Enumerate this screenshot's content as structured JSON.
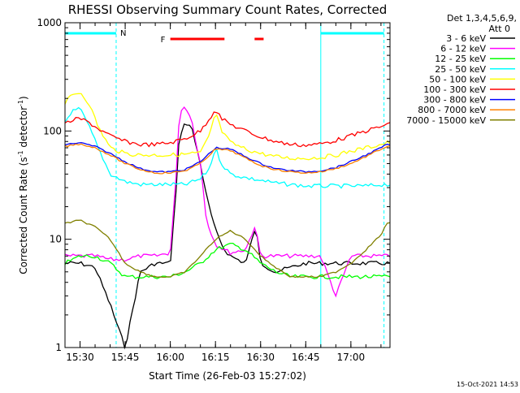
{
  "chart_data": {
    "type": "line",
    "title": "RHESSI Observing Summary Count Rates, Corrected",
    "xlabel": "Start Time (26-Feb-03 15:27:02)",
    "ylabel": "Corrected Count Rate (s",
    "ylabel_sup": "-1",
    "ylabel_mid": " detector",
    "ylabel_end": ")",
    "y_scale": "log",
    "ylim": [
      1,
      1000
    ],
    "xlim": [
      "15:25",
      "17:13"
    ],
    "x_ticks": [
      "15:30",
      "15:45",
      "16:00",
      "16:15",
      "16:30",
      "16:45",
      "17:00"
    ],
    "y_ticks": [
      "1",
      "10",
      "100",
      "1000"
    ],
    "grid": false,
    "timestamp": "15-Oct-2021 14:53",
    "legend": {
      "placement": "right",
      "header": [
        "Det 1,3,4,5,6,9,",
        "Att 0"
      ]
    },
    "colors": {
      "background": "#ffffff",
      "axes": "#000000",
      "markers": "#ff0000",
      "night": "#00ffff"
    },
    "annotations": {
      "night_label": "N",
      "flare_label": "F"
    },
    "night_periods": [
      [
        "15:25",
        "15:42"
      ],
      [
        "16:50",
        "17:11"
      ]
    ],
    "flare_periods": [
      [
        "16:00",
        "16:18"
      ],
      [
        "16:28",
        "16:31"
      ]
    ],
    "series": [
      {
        "name": "3 - 6 keV",
        "color": "#000000",
        "x": [
          "15:25",
          "15:30",
          "15:35",
          "15:40",
          "15:45",
          "15:50",
          "15:55",
          "16:00",
          "16:02",
          "16:03",
          "16:05",
          "16:07",
          "16:10",
          "16:12",
          "16:15",
          "16:18",
          "16:20",
          "16:25",
          "16:28",
          "16:29",
          "16:30",
          "16:35",
          "16:40",
          "16:45",
          "16:50",
          "16:55",
          "17:00",
          "17:05",
          "17:10",
          "17:12"
        ],
        "y": [
          6,
          6,
          5.5,
          2.5,
          1,
          5,
          6,
          6,
          30,
          90,
          120,
          110,
          50,
          25,
          12,
          8,
          7,
          6,
          12,
          10,
          6,
          5,
          5.5,
          6,
          6,
          6,
          6,
          6,
          6,
          6
        ]
      },
      {
        "name": "6 - 12 keV",
        "color": "#ff00ff",
        "x": [
          "15:25",
          "15:30",
          "15:35",
          "15:40",
          "15:45",
          "15:50",
          "15:55",
          "16:00",
          "16:02",
          "16:03",
          "16:05",
          "16:07",
          "16:10",
          "16:12",
          "16:15",
          "16:18",
          "16:20",
          "16:25",
          "16:28",
          "16:29",
          "16:30",
          "16:35",
          "16:40",
          "16:45",
          "16:50",
          "16:55",
          "17:00",
          "17:05",
          "17:10",
          "17:12"
        ],
        "y": [
          7,
          7,
          7,
          6.5,
          6.5,
          7,
          7,
          7.5,
          40,
          150,
          170,
          130,
          50,
          15,
          9,
          8,
          7.5,
          8,
          13,
          10,
          7,
          7,
          7,
          7,
          7,
          3,
          7,
          7,
          7,
          7
        ]
      },
      {
        "name": "12 - 25 keV",
        "color": "#00ff00",
        "x": [
          "15:25",
          "15:30",
          "15:35",
          "15:40",
          "15:45",
          "15:50",
          "15:55",
          "16:00",
          "16:05",
          "16:10",
          "16:15",
          "16:20",
          "16:25",
          "16:30",
          "16:35",
          "16:40",
          "16:45",
          "16:50",
          "16:55",
          "17:00",
          "17:05",
          "17:10",
          "17:12"
        ],
        "y": [
          6,
          7,
          7,
          6,
          4.5,
          4.5,
          4.5,
          4.5,
          5,
          6,
          8,
          9,
          8,
          6,
          5,
          4.5,
          4.5,
          4.5,
          4.5,
          4.5,
          4.5,
          4.5,
          4.5
        ]
      },
      {
        "name": "25 - 50 keV",
        "color": "#00ffff",
        "x": [
          "15:25",
          "15:27",
          "15:30",
          "15:33",
          "15:36",
          "15:40",
          "15:45",
          "15:50",
          "15:55",
          "16:00",
          "16:05",
          "16:10",
          "16:13",
          "16:15",
          "16:17",
          "16:20",
          "16:25",
          "16:30",
          "16:35",
          "16:40",
          "16:45",
          "16:50",
          "16:55",
          "17:00",
          "17:05",
          "17:10",
          "17:12"
        ],
        "y": [
          120,
          150,
          160,
          110,
          70,
          40,
          34,
          32,
          32,
          32,
          32,
          36,
          45,
          70,
          50,
          40,
          37,
          35,
          33,
          32,
          31,
          31,
          31,
          31,
          31,
          32,
          32
        ]
      },
      {
        "name": "50 - 100 keV",
        "color": "#ffff00",
        "x": [
          "15:25",
          "15:27",
          "15:30",
          "15:33",
          "15:36",
          "15:40",
          "15:45",
          "15:50",
          "15:55",
          "16:00",
          "16:05",
          "16:10",
          "16:13",
          "16:15",
          "16:17",
          "16:20",
          "16:25",
          "16:30",
          "16:35",
          "16:40",
          "16:45",
          "16:50",
          "16:55",
          "17:00",
          "17:05",
          "17:10",
          "17:12"
        ],
        "y": [
          180,
          210,
          230,
          180,
          110,
          70,
          62,
          60,
          60,
          60,
          61,
          63,
          90,
          150,
          100,
          78,
          68,
          62,
          58,
          56,
          56,
          57,
          60,
          65,
          70,
          75,
          78
        ]
      },
      {
        "name": "100 - 300 keV",
        "color": "#ff0000",
        "x": [
          "15:25",
          "15:27",
          "15:30",
          "15:33",
          "15:36",
          "15:40",
          "15:45",
          "15:50",
          "15:55",
          "16:00",
          "16:05",
          "16:10",
          "16:13",
          "16:15",
          "16:17",
          "16:20",
          "16:25",
          "16:30",
          "16:35",
          "16:40",
          "16:45",
          "16:50",
          "16:55",
          "17:00",
          "17:05",
          "17:10",
          "17:12"
        ],
        "y": [
          115,
          125,
          130,
          120,
          105,
          90,
          80,
          75,
          75,
          78,
          85,
          100,
          130,
          160,
          130,
          115,
          100,
          88,
          80,
          75,
          74,
          76,
          82,
          90,
          100,
          110,
          115
        ]
      },
      {
        "name": "300 - 800 keV",
        "color": "#0000ff",
        "x": [
          "15:25",
          "15:30",
          "15:35",
          "15:40",
          "15:45",
          "15:50",
          "15:55",
          "16:00",
          "16:05",
          "16:10",
          "16:15",
          "16:20",
          "16:25",
          "16:30",
          "16:35",
          "16:40",
          "16:45",
          "16:50",
          "16:55",
          "17:00",
          "17:05",
          "17:10",
          "17:12"
        ],
        "y": [
          75,
          78,
          72,
          62,
          52,
          45,
          42,
          42,
          44,
          52,
          70,
          68,
          58,
          50,
          45,
          43,
          42,
          43,
          46,
          52,
          60,
          70,
          75
        ]
      },
      {
        "name": "800 - 7000 keV",
        "color": "#ff8000",
        "x": [
          "15:25",
          "15:30",
          "15:35",
          "15:40",
          "15:45",
          "15:50",
          "15:55",
          "16:00",
          "16:05",
          "16:10",
          "16:15",
          "16:20",
          "16:25",
          "16:30",
          "16:35",
          "16:40",
          "16:45",
          "16:50",
          "16:55",
          "17:00",
          "17:05",
          "17:10",
          "17:12"
        ],
        "y": [
          72,
          76,
          70,
          60,
          50,
          44,
          41,
          41,
          43,
          50,
          68,
          66,
          56,
          48,
          44,
          42,
          41,
          42,
          45,
          50,
          58,
          68,
          72
        ]
      },
      {
        "name": "7000 - 15000 keV",
        "color": "#808000",
        "x": [
          "15:25",
          "15:30",
          "15:35",
          "15:40",
          "15:45",
          "15:50",
          "15:55",
          "16:00",
          "16:05",
          "16:10",
          "16:15",
          "16:20",
          "16:25",
          "16:30",
          "16:35",
          "16:40",
          "16:45",
          "16:50",
          "16:55",
          "17:00",
          "17:05",
          "17:10",
          "17:12"
        ],
        "y": [
          14,
          15,
          13,
          10,
          6,
          5,
          4.5,
          4.5,
          5,
          7,
          10,
          12,
          10,
          7,
          5.5,
          4.5,
          4.5,
          4.5,
          5,
          6,
          8,
          11,
          14
        ]
      }
    ]
  }
}
